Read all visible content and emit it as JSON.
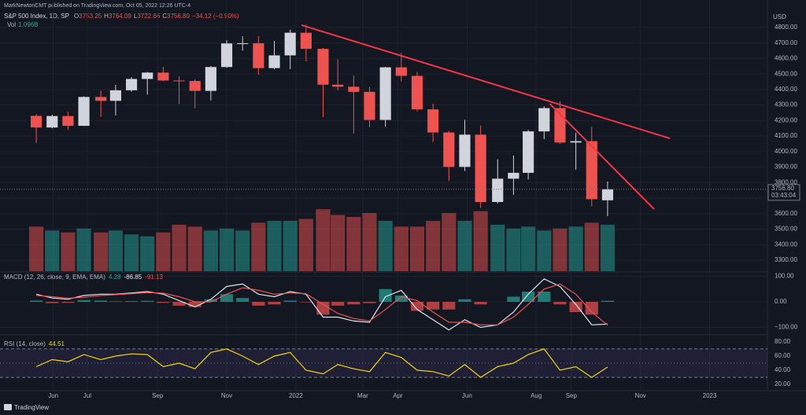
{
  "chart_data": {
    "type": "candlestick",
    "header": {
      "publisher": "MarkNewtonCMT published on TradingView.com, Oct 05, 2022 12:26 UTC-4",
      "symbol": "S&P 500 Index, 1D, SP",
      "ohlc": [
        {
          "key": "O",
          "value": "3753.25"
        },
        {
          "key": "H",
          "value": "3764.09"
        },
        {
          "key": "L",
          "value": "3722.66"
        },
        {
          "key": "C",
          "value": "3756.80"
        }
      ],
      "change": "−34.12 (−0.90%)",
      "volume_key": "Vol",
      "volume_value": "1.096B",
      "currency": "USD",
      "price_tag": "3756.80",
      "countdown": "03:43:04",
      "brand": "TradingView"
    },
    "x": [
      "2021-05-10",
      "2021-05-24",
      "2021-06-07",
      "2021-06-21",
      "2021-07-06",
      "2021-07-19",
      "2021-08-02",
      "2021-08-16",
      "2021-08-30",
      "2021-09-13",
      "2021-09-27",
      "2021-10-11",
      "2021-10-25",
      "2021-11-08",
      "2021-11-22",
      "2021-12-06",
      "2021-12-20",
      "2022-01-03",
      "2022-01-18",
      "2022-01-31",
      "2022-02-14",
      "2022-02-28",
      "2022-03-14",
      "2022-03-28",
      "2022-04-11",
      "2022-04-25",
      "2022-05-09",
      "2022-05-23",
      "2022-06-06",
      "2022-06-21",
      "2022-07-05",
      "2022-07-18",
      "2022-08-01",
      "2022-08-15",
      "2022-08-29",
      "2022-09-12",
      "2022-09-26"
    ],
    "open": [
      4230,
      4155,
      4229,
      4166,
      4352,
      4327,
      4395,
      4468,
      4509,
      4458,
      4455,
      4391,
      4545,
      4697,
      4698,
      4538,
      4620,
      4766,
      4662,
      4431,
      4418,
      4385,
      4204,
      4543,
      4488,
      4272,
      4123,
      3901,
      4109,
      3675,
      3825,
      3863,
      4130,
      4280,
      4058,
      4067,
      3686
    ],
    "high": [
      4240,
      4238,
      4257,
      4356,
      4393,
      4430,
      4480,
      4513,
      4546,
      4485,
      4465,
      4551,
      4718,
      4743,
      4744,
      4713,
      4786,
      4818,
      4668,
      4595,
      4490,
      4416,
      4546,
      4637,
      4513,
      4308,
      4133,
      4205,
      4168,
      3950,
      3975,
      4140,
      4291,
      4325,
      4120,
      4160,
      3807
    ],
    "low": [
      4056,
      4150,
      4140,
      4165,
      4224,
      4233,
      4385,
      4367,
      4453,
      4305,
      4278,
      4330,
      4540,
      4651,
      4495,
      4531,
      4531,
      4582,
      4222,
      4393,
      4115,
      4157,
      4161,
      4451,
      4259,
      4062,
      3810,
      3875,
      3637,
      3665,
      3721,
      3820,
      4079,
      4049,
      3884,
      3647,
      3584
    ],
    "close": [
      4155,
      4229,
      4166,
      4352,
      4327,
      4395,
      4468,
      4509,
      4458,
      4455,
      4391,
      4545,
      4697,
      4698,
      4538,
      4620,
      4766,
      4662,
      4431,
      4418,
      4385,
      4204,
      4543,
      4488,
      4272,
      4123,
      3901,
      4109,
      3675,
      3825,
      3863,
      4130,
      4280,
      4058,
      4067,
      3693,
      3756.8
    ],
    "up_color": "#d1d4dc",
    "down_color": "#ef5350",
    "xlim": [
      "2021-04-15",
      "2023-02-21"
    ],
    "xticks": [
      {
        "value": "2021-06-01",
        "label": "Jun"
      },
      {
        "value": "2021-07-01",
        "label": "Jul"
      },
      {
        "value": "2021-09-01",
        "label": "Sep"
      },
      {
        "value": "2021-11-01",
        "label": "Nov"
      },
      {
        "value": "2022-01-01",
        "label": "2022"
      },
      {
        "value": "2022-03-01",
        "label": "Mar"
      },
      {
        "value": "2022-04-01",
        "label": "Apr"
      },
      {
        "value": "2022-06-01",
        "label": "Jun"
      },
      {
        "value": "2022-08-01",
        "label": "Aug"
      },
      {
        "value": "2022-09-01",
        "label": "Sep"
      },
      {
        "value": "2022-11-01",
        "label": "Nov"
      },
      {
        "value": "2023-01-01",
        "label": "2023"
      }
    ],
    "ylim": [
      3229,
      4977
    ],
    "yticks": [
      {
        "value": 3300,
        "label": "3300.00"
      },
      {
        "value": 3400,
        "label": "3400.00"
      },
      {
        "value": 3500,
        "label": "3500.00"
      },
      {
        "value": 3600,
        "label": "3600.00"
      },
      {
        "value": 3700,
        "label": "3700.00"
      },
      {
        "value": 3800,
        "label": "3800.00"
      },
      {
        "value": 3900,
        "label": "3900.00"
      },
      {
        "value": 4000,
        "label": "4000.00"
      },
      {
        "value": 4100,
        "label": "4100.00"
      },
      {
        "value": 4200,
        "label": "4200.00"
      },
      {
        "value": 4300,
        "label": "4300.00"
      },
      {
        "value": 4400,
        "label": "4400.00"
      },
      {
        "value": 4500,
        "label": "4500.00"
      },
      {
        "value": 4600,
        "label": "4600.00"
      },
      {
        "value": 4700,
        "label": "4700.00"
      },
      {
        "value": 4800,
        "label": "4800.00"
      }
    ],
    "grid": true,
    "trendlines": [
      {
        "x": [
          "2022-01-06",
          "2022-11-27"
        ],
        "y": [
          4815,
          4085
        ],
        "color": "#f23645"
      },
      {
        "x": [
          "2022-08-13",
          "2022-11-13"
        ],
        "y": [
          4308,
          3629
        ],
        "color": "#f23645"
      }
    ],
    "volume": {
      "values": [
        2.3,
        2.1,
        2.0,
        2.2,
        2.0,
        2.1,
        1.9,
        1.8,
        2.0,
        2.4,
        2.3,
        2.1,
        2.2,
        2.1,
        2.5,
        2.6,
        2.6,
        2.7,
        3.2,
        2.9,
        2.8,
        3.0,
        2.6,
        2.3,
        2.3,
        2.6,
        3.0,
        2.6,
        3.1,
        2.4,
        2.2,
        2.3,
        2.1,
        2.2,
        2.3,
        2.5,
        2.4
      ],
      "ylim": [
        0,
        14
      ],
      "up_color": "#26a69a",
      "down_color": "#ef5350"
    },
    "macd": {
      "label": "MACD (12, 26, close, 9, EMA, EMA)",
      "macd": [
        30,
        15,
        10,
        25,
        30,
        30,
        35,
        40,
        30,
        5,
        -20,
        10,
        60,
        70,
        30,
        20,
        40,
        30,
        -60,
        -60,
        -75,
        -80,
        20,
        45,
        -30,
        -70,
        -110,
        -70,
        -100,
        -90,
        -40,
        30,
        90,
        60,
        -10,
        -90,
        -86.85
      ],
      "signal": [
        25,
        20,
        14,
        18,
        25,
        28,
        32,
        36,
        34,
        20,
        0,
        0,
        30,
        55,
        45,
        30,
        35,
        32,
        -10,
        -45,
        -65,
        -75,
        -30,
        20,
        5,
        -40,
        -80,
        -80,
        -90,
        -90,
        -60,
        -10,
        50,
        70,
        30,
        -40,
        -91.13
      ],
      "histogram": [
        5,
        -5,
        -4,
        7,
        5,
        2,
        3,
        4,
        -4,
        -15,
        -20,
        10,
        30,
        15,
        -15,
        -10,
        5,
        -2,
        -50,
        -15,
        -10,
        -5,
        50,
        25,
        -35,
        -30,
        -30,
        10,
        -10,
        0,
        20,
        40,
        40,
        -10,
        -40,
        -50,
        4.28
      ],
      "macd_color": "#e0e3eb",
      "signal_color": "#ef5350",
      "hist_up_color": "#26a69a",
      "hist_down_color": "#ef5350",
      "ylim": [
        -126,
        117
      ],
      "yticks": [
        {
          "value": 100,
          "label": "100.00"
        },
        {
          "value": 0,
          "label": "0.00"
        },
        {
          "value": -100,
          "label": "−100.00"
        }
      ]
    },
    "rsi": {
      "label": "RSI (14, close)",
      "values": [
        45,
        55,
        52,
        62,
        55,
        60,
        63,
        62,
        45,
        50,
        42,
        65,
        70,
        60,
        48,
        60,
        65,
        40,
        35,
        48,
        42,
        38,
        65,
        58,
        40,
        38,
        32,
        48,
        30,
        45,
        50,
        62,
        70,
        40,
        45,
        30,
        44.51
      ],
      "color": "#f5d400",
      "band": [
        30,
        70
      ],
      "middle": 50,
      "ylim": [
        12.4,
        88.7
      ],
      "yticks": [
        {
          "value": 80,
          "label": "80.00"
        },
        {
          "value": 60,
          "label": "60.00"
        },
        {
          "value": 40,
          "label": "40.00"
        },
        {
          "value": 20,
          "label": "20.00"
        }
      ]
    }
  }
}
